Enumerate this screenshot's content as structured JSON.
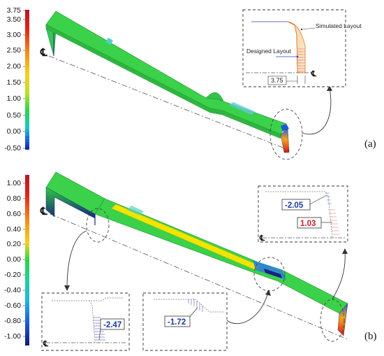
{
  "colorbar_a": {
    "ticks": [
      "3.75",
      "3.50",
      "3.00",
      "2.50",
      "2.00",
      "1.50",
      "1.00",
      "0.50",
      "0.00",
      "-0.50"
    ]
  },
  "colorbar_b": {
    "ticks": [
      "1.00",
      "0.80",
      "0.60",
      "0.40",
      "0.20",
      "0.00",
      "-0.20",
      "-0.40",
      "-0.60",
      "-0.80",
      "-1.00"
    ]
  },
  "panel_a": {
    "label": "(a)",
    "centerline_symbol": "℄",
    "inset": {
      "simulated_label": "Simulated Layout",
      "designed_label": "Designed Layout",
      "dimension": "3.75",
      "centerline_symbol": "℄"
    }
  },
  "panel_b": {
    "label": "(b)",
    "centerline_symbol": "℄",
    "inset_right": {
      "value_top": "-2.05",
      "value_bottom": "1.03",
      "centerline_symbol": "℄"
    },
    "inset_left": {
      "value": "-2.47",
      "centerline_symbol": "℄"
    },
    "inset_mid": {
      "value": "-1.72"
    }
  },
  "colors": {
    "green": "#2ecc40",
    "yellow": "#f2e400",
    "red": "#d7191c",
    "navy": "#1a237e",
    "blue_value": "#1a3a9a",
    "red_value": "#cc1f1f"
  }
}
